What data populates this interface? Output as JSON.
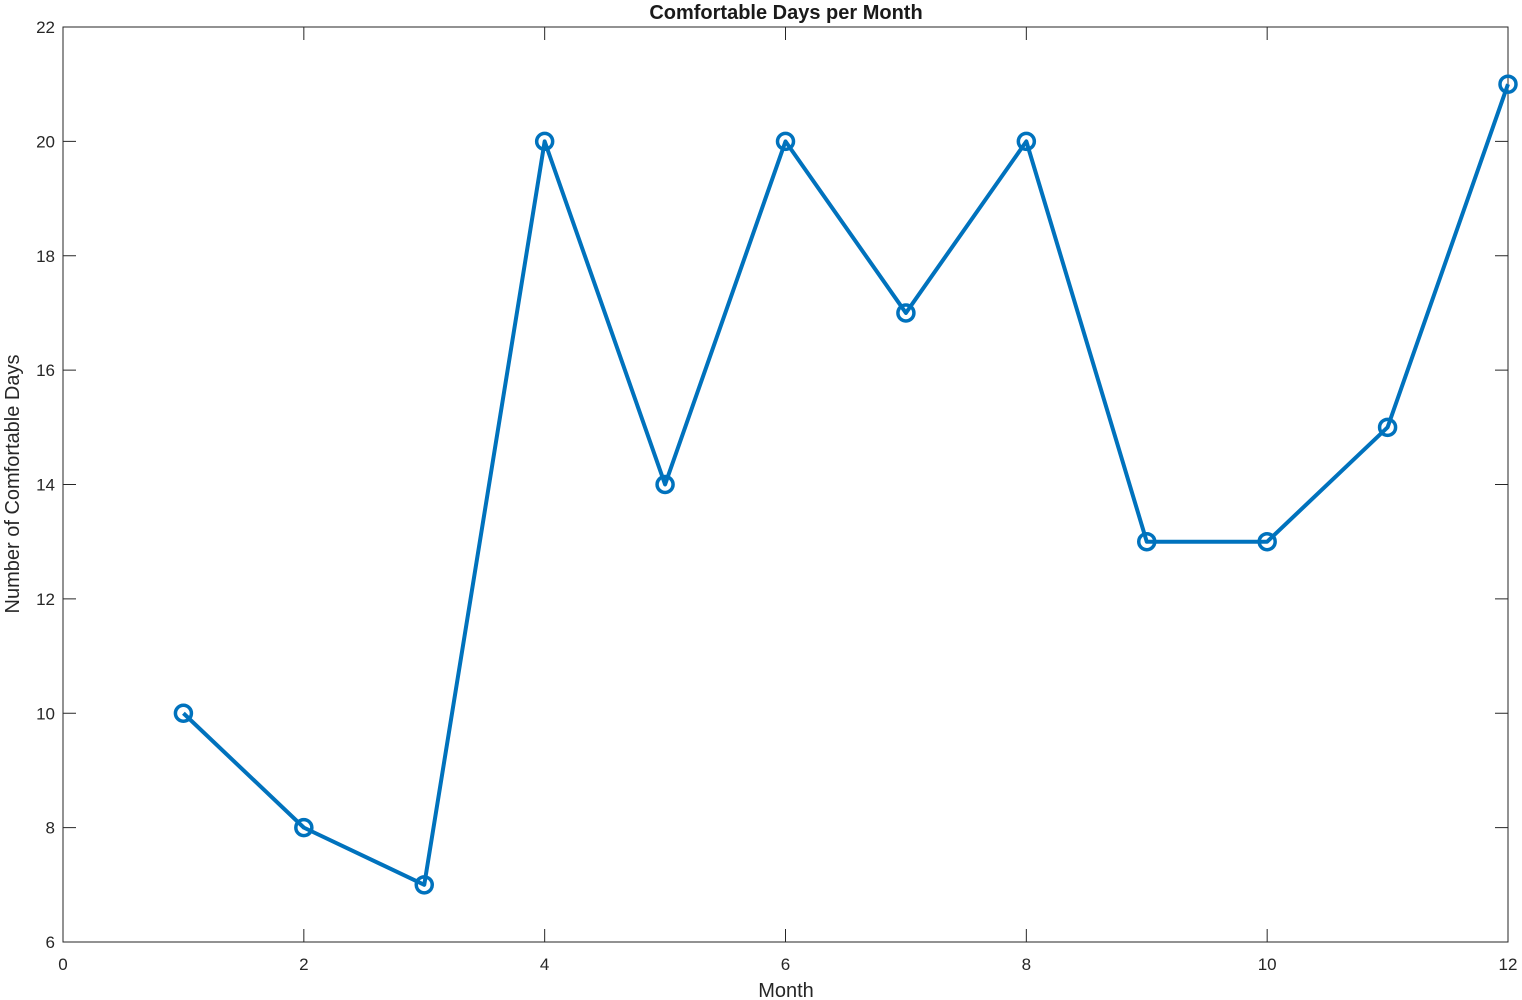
{
  "chart_data": {
    "type": "line",
    "title": "Comfortable Days per Month",
    "xlabel": "Month",
    "ylabel": "Number of Comfortable Days",
    "xlim": [
      0,
      12
    ],
    "ylim": [
      6,
      22
    ],
    "xticks": [
      "0",
      "2",
      "4",
      "6",
      "8",
      "10",
      "12"
    ],
    "yticks": [
      "6",
      "8",
      "10",
      "12",
      "14",
      "16",
      "18",
      "20",
      "22"
    ],
    "grid": false,
    "series": [
      {
        "x": [
          1,
          2,
          3,
          4,
          5,
          6,
          7,
          8,
          9,
          10,
          11,
          12
        ],
        "values": [
          10,
          8,
          7,
          20,
          14,
          20,
          17,
          20,
          13,
          13,
          15,
          21
        ],
        "color": "#0072BD",
        "marker": "circle"
      }
    ]
  }
}
